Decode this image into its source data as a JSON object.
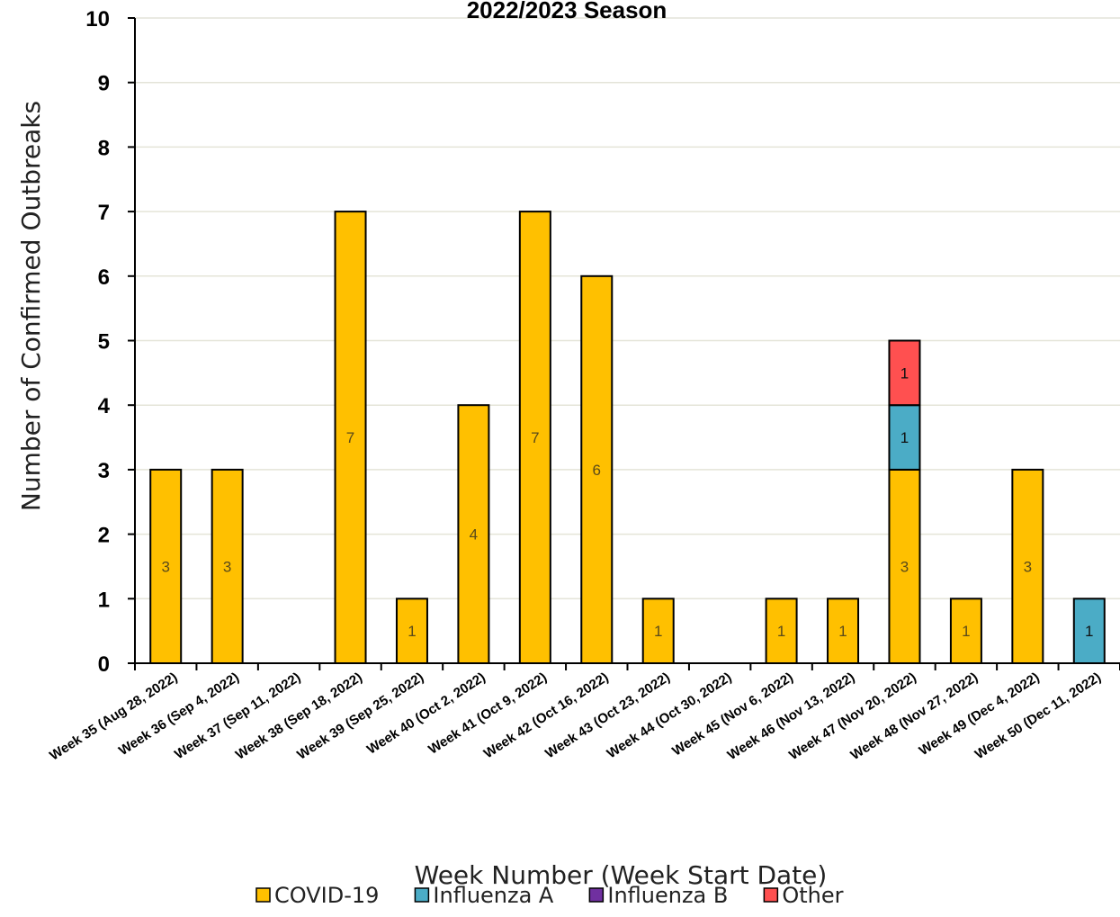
{
  "chart_data": {
    "type": "bar",
    "stacked": true,
    "title": "2022/2023 Season",
    "xlabel": "Week Number (Week Start Date)",
    "ylabel": "Number of Confirmed Outbreaks",
    "ylim": [
      0,
      10
    ],
    "yticks": [
      "0",
      "1",
      "2",
      "3",
      "4",
      "5",
      "6",
      "7",
      "8",
      "9",
      "10"
    ],
    "grid": true,
    "legend_position": "bottom",
    "categories": [
      "Week 35 (Aug 28, 2022)",
      "Week 36 (Sep 4, 2022)",
      "Week 37 (Sep 11, 2022)",
      "Week 38 (Sep 18, 2022)",
      "Week 39 (Sep 25, 2022)",
      "Week 40 (Oct 2, 2022)",
      "Week 41 (Oct 9, 2022)",
      "Week 42 (Oct 16, 2022)",
      "Week 43 (Oct 23, 2022)",
      "Week 44 (Oct 30, 2022)",
      "Week 45 (Nov 6, 2022)",
      "Week 46 (Nov 13, 2022)",
      "Week 47 (Nov 20, 2022)",
      "Week 48 (Nov 27, 2022)",
      "Week 49 (Dec 4, 2022)",
      "Week 50 (Dec 11, 2022)"
    ],
    "series": [
      {
        "name": "COVID-19",
        "color": "#FFC000",
        "values": [
          3,
          3,
          0,
          7,
          1,
          4,
          7,
          6,
          1,
          0,
          1,
          1,
          3,
          1,
          3,
          0
        ]
      },
      {
        "name": "Influenza A",
        "color": "#4BACC6",
        "values": [
          0,
          0,
          0,
          0,
          0,
          0,
          0,
          0,
          0,
          0,
          0,
          0,
          1,
          0,
          0,
          1
        ]
      },
      {
        "name": "Influenza B",
        "color": "#7030A0",
        "values": [
          0,
          0,
          0,
          0,
          0,
          0,
          0,
          0,
          0,
          0,
          0,
          0,
          0,
          0,
          0,
          0
        ]
      },
      {
        "name": "Other",
        "color": "#FF5050",
        "values": [
          0,
          0,
          0,
          0,
          0,
          0,
          0,
          0,
          0,
          0,
          0,
          0,
          1,
          0,
          0,
          0
        ]
      }
    ]
  }
}
